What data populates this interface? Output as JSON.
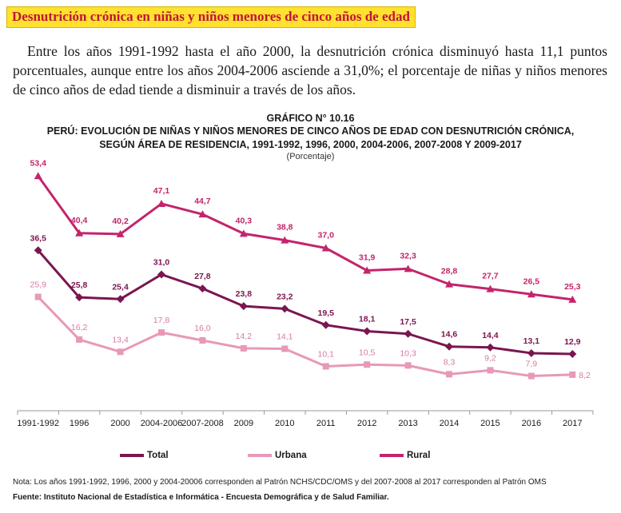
{
  "heading": "Desnutrición crónica en niñas y niños menores de cinco años de edad",
  "paragraph": "Entre los años 1991-1992 hasta el año 2000, la desnutrición crónica disminuyó hasta 11,1 puntos porcentuales, aunque entre los años 2004-2006 asciende a 31,0%; el porcentaje de niñas y niños menores de cinco años de edad tiende a disminuir a través de los años.",
  "chart_data": {
    "type": "line",
    "title_line1": "GRÁFICO N° 10.16",
    "title_line2": "PERÚ: EVOLUCIÓN DE NIÑAS Y NIÑOS MENORES DE CINCO AÑOS DE EDAD CON DESNUTRICIÓN CRÓNICA,",
    "title_line3": "SEGÚN ÁREA DE RESIDENCIA, 1991-1992, 1996, 2000, 2004-2006, 2007-2008 Y 2009-2017",
    "subtitle": "(Porcentaje)",
    "categories": [
      "1991-1992",
      "1996",
      "2000",
      "2004-2006",
      "2007-2008",
      "2009",
      "2010",
      "2011",
      "2012",
      "2013",
      "2014",
      "2015",
      "2016",
      "2017"
    ],
    "series": [
      {
        "name": "Rural",
        "color": "#c4246c",
        "marker": "triangle",
        "values": [
          53.4,
          40.4,
          40.2,
          47.1,
          44.7,
          40.3,
          38.8,
          37.0,
          31.9,
          32.3,
          28.8,
          27.7,
          26.5,
          25.3
        ],
        "labels": [
          "53,4",
          "40,4",
          "40,2",
          "47,1",
          "44,7",
          "40,3",
          "38,8",
          "37,0",
          "31,9",
          "32,3",
          "28,8",
          "27,7",
          "26,5",
          "25,3"
        ]
      },
      {
        "name": "Total",
        "color": "#7a1650",
        "marker": "diamond",
        "values": [
          36.5,
          25.8,
          25.4,
          31.0,
          27.8,
          23.8,
          23.2,
          19.5,
          18.1,
          17.5,
          14.6,
          14.4,
          13.1,
          12.9
        ],
        "labels": [
          "36,5",
          "25,8",
          "25,4",
          "31,0",
          "27,8",
          "23,8",
          "23,2",
          "19,5",
          "18,1",
          "17,5",
          "14,6",
          "14,4",
          "13,1",
          "12,9"
        ]
      },
      {
        "name": "Urbana",
        "color": "#e898b8",
        "marker": "square",
        "values": [
          25.9,
          16.2,
          13.4,
          17.8,
          16.0,
          14.2,
          14.1,
          10.1,
          10.5,
          10.3,
          8.3,
          9.2,
          7.9,
          8.2
        ],
        "labels": [
          "25,9",
          "16,2",
          "13,4",
          "17,8",
          "16,0",
          "14,2",
          "14,1",
          "10,1",
          "10,5",
          "10,3",
          "8,3",
          "9,2",
          "7,9",
          "8,2"
        ]
      }
    ],
    "ylim": [
      0,
      60
    ],
    "grid": false,
    "legend": {
      "position": "bottom",
      "order": [
        "Total",
        "Urbana",
        "Rural"
      ]
    }
  },
  "note": "Nota: Los años 1991-1992, 1996, 2000 y 2004-20006 corresponden al Patrón NCHS/CDC/OMS y del 2007-2008 al 2017 corresponden al Patrón OMS",
  "source": "Fuente: Instituto Nacional de Estadística e Informática - Encuesta Demográfica y de Salud Familiar."
}
